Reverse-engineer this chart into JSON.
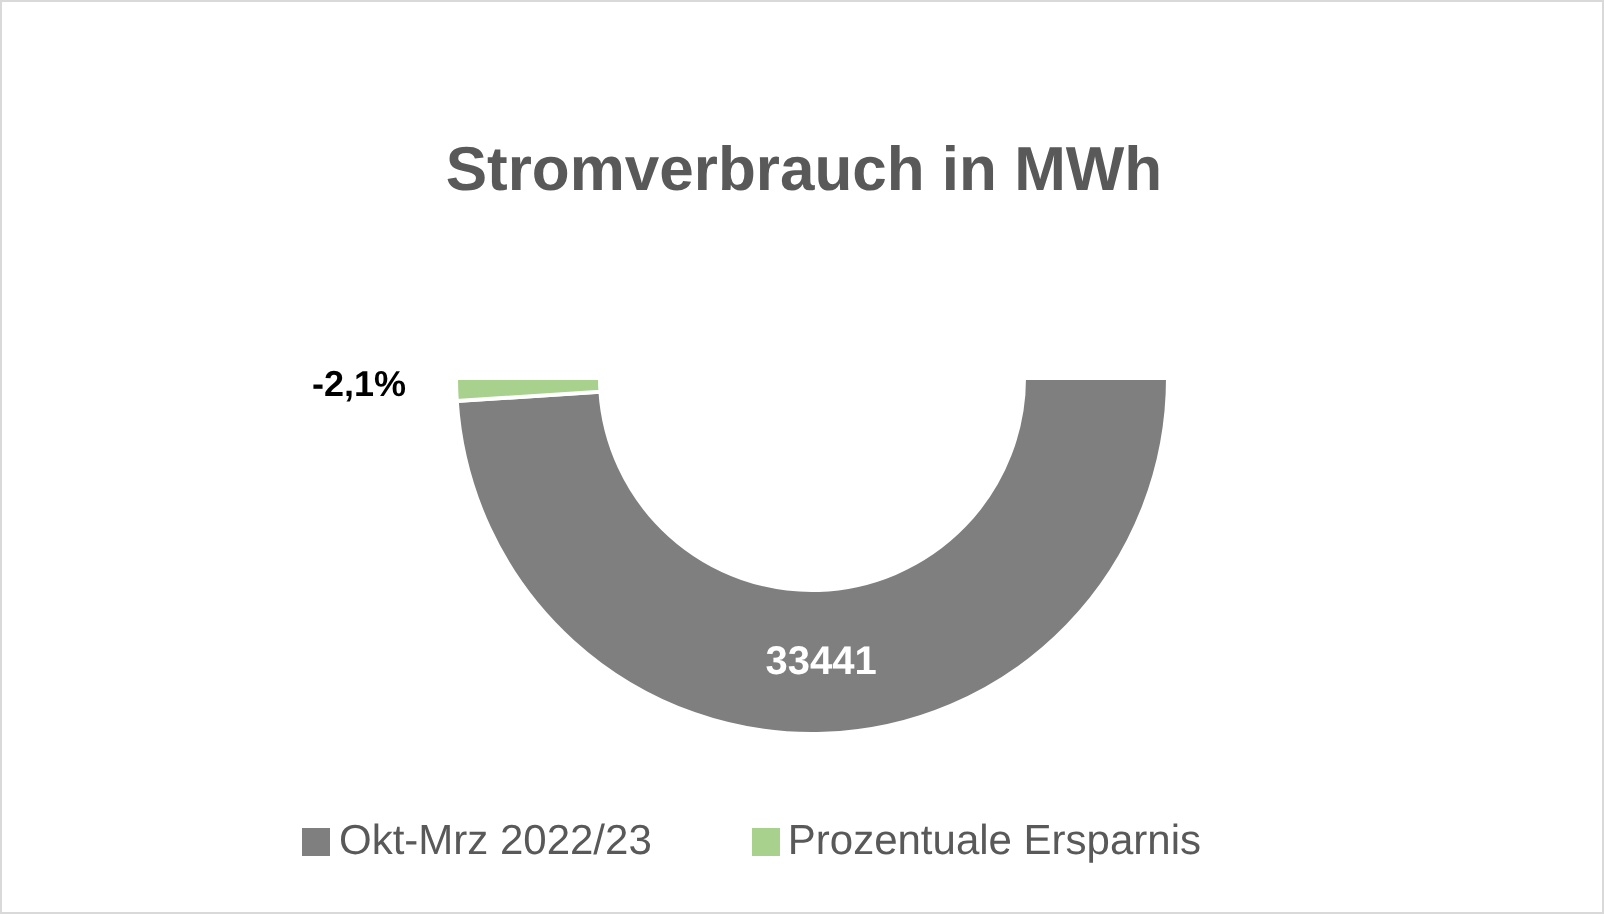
{
  "chart_data": {
    "type": "donut",
    "title": "Stromverbrauch in MWh",
    "categories": [
      "Okt-Mrz 2022/23",
      "Prozentuale Ersparnis"
    ],
    "values": [
      33441,
      702
    ],
    "value_labels": [
      "33441",
      null
    ],
    "annotations": [
      "-2,1%"
    ],
    "colors": [
      "#7f7f7f",
      "#a9d18e"
    ],
    "legend": "bottom"
  }
}
